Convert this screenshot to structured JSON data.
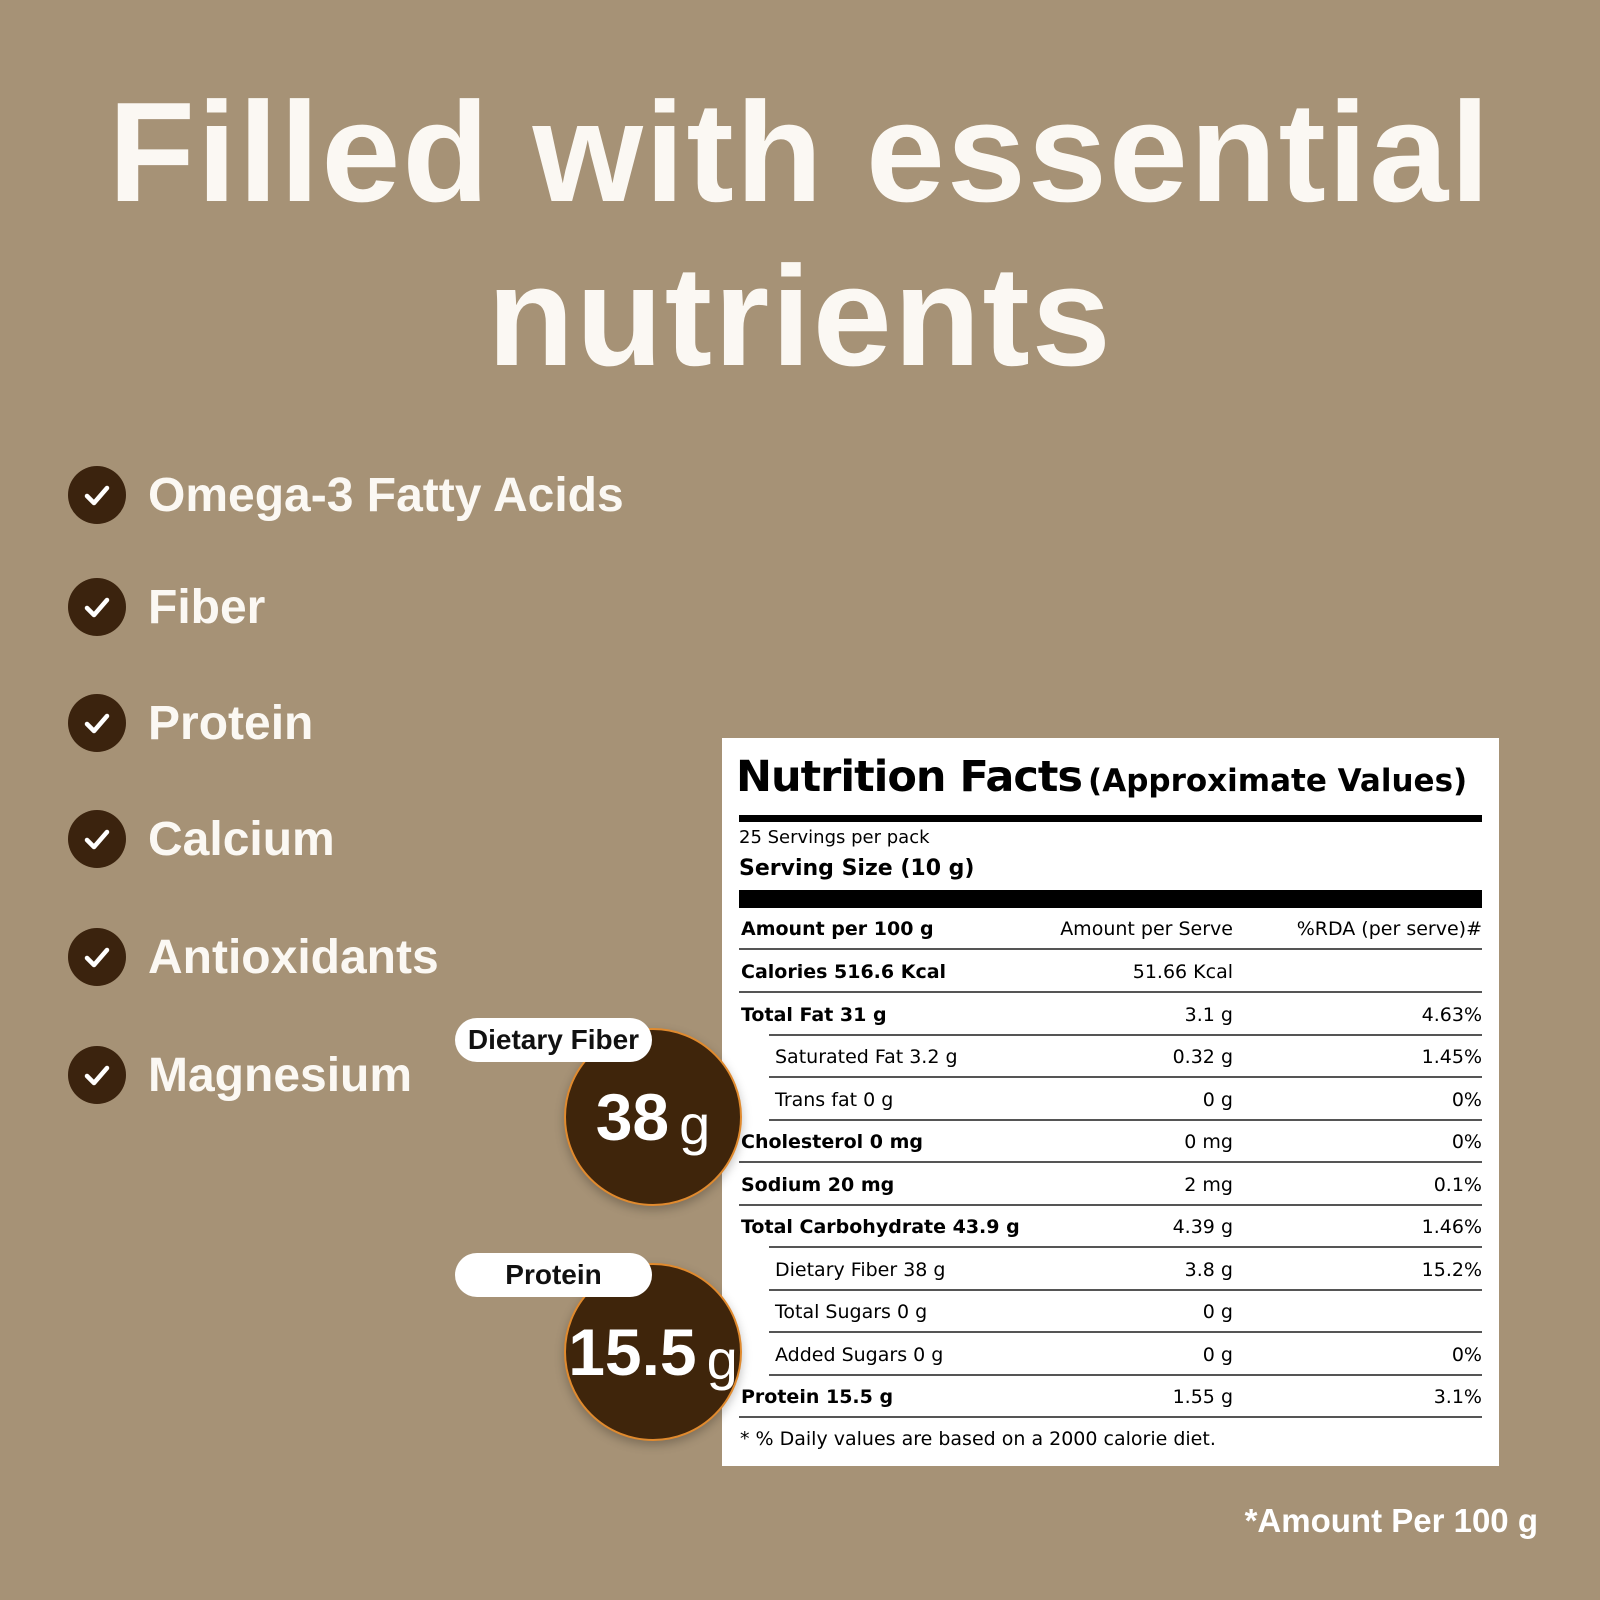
{
  "headline": {
    "line1": "Filled with essential",
    "line2": "nutrients"
  },
  "checklist": {
    "icon": "check-icon",
    "items": [
      "Omega-3 Fatty Acids",
      "Fiber",
      "Protein",
      "Calcium",
      "Antioxidants",
      "Magnesium"
    ]
  },
  "highlights": [
    {
      "label": "Dietary Fiber",
      "value": "38",
      "unit": "g"
    },
    {
      "label": "Protein",
      "value": "15.5",
      "unit": "g"
    }
  ],
  "nutrition": {
    "title": "Nutrition Facts",
    "subtitle": "(Approximate Values)",
    "servings": "25 Servings per pack",
    "serving_size": "Serving Size (10 g)",
    "headers": [
      "Amount per 100 g",
      "Amount per Serve",
      "%RDA (per serve)#"
    ],
    "rows": [
      {
        "name": "Calories 516.6 Kcal",
        "serve": "51.66 Kcal",
        "rda": ""
      },
      {
        "name": "Total Fat 31 g",
        "serve": "3.1 g",
        "rda": "4.63%"
      },
      {
        "name": "Saturated Fat 3.2 g",
        "serve": "0.32 g",
        "rda": "1.45%"
      },
      {
        "name": "Trans fat 0 g",
        "serve": "0 g",
        "rda": "0%"
      },
      {
        "name": "Cholesterol 0 mg",
        "serve": "0 mg",
        "rda": "0%"
      },
      {
        "name": "Sodium 20 mg",
        "serve": "2 mg",
        "rda": "0.1%"
      },
      {
        "name": "Total Carbohydrate 43.9 g",
        "serve": "4.39 g",
        "rda": "1.46%"
      },
      {
        "name": "Dietary Fiber 38 g",
        "serve": "3.8 g",
        "rda": "15.2%"
      },
      {
        "name": "Total Sugars 0 g",
        "serve": "0 g",
        "rda": ""
      },
      {
        "name": "Added Sugars 0 g",
        "serve": "0 g",
        "rda": "0%"
      },
      {
        "name": "Protein 15.5 g",
        "serve": "1.55 g",
        "rda": "3.1%"
      }
    ],
    "footnote": "* % Daily values are based on a 2000 calorie diet."
  },
  "note": "*Amount Per 100 g",
  "colors": {
    "background": "#a69276",
    "dark_brown": "#3f250b",
    "ring": "#e08a2e",
    "text_light": "#fbf8f3"
  }
}
